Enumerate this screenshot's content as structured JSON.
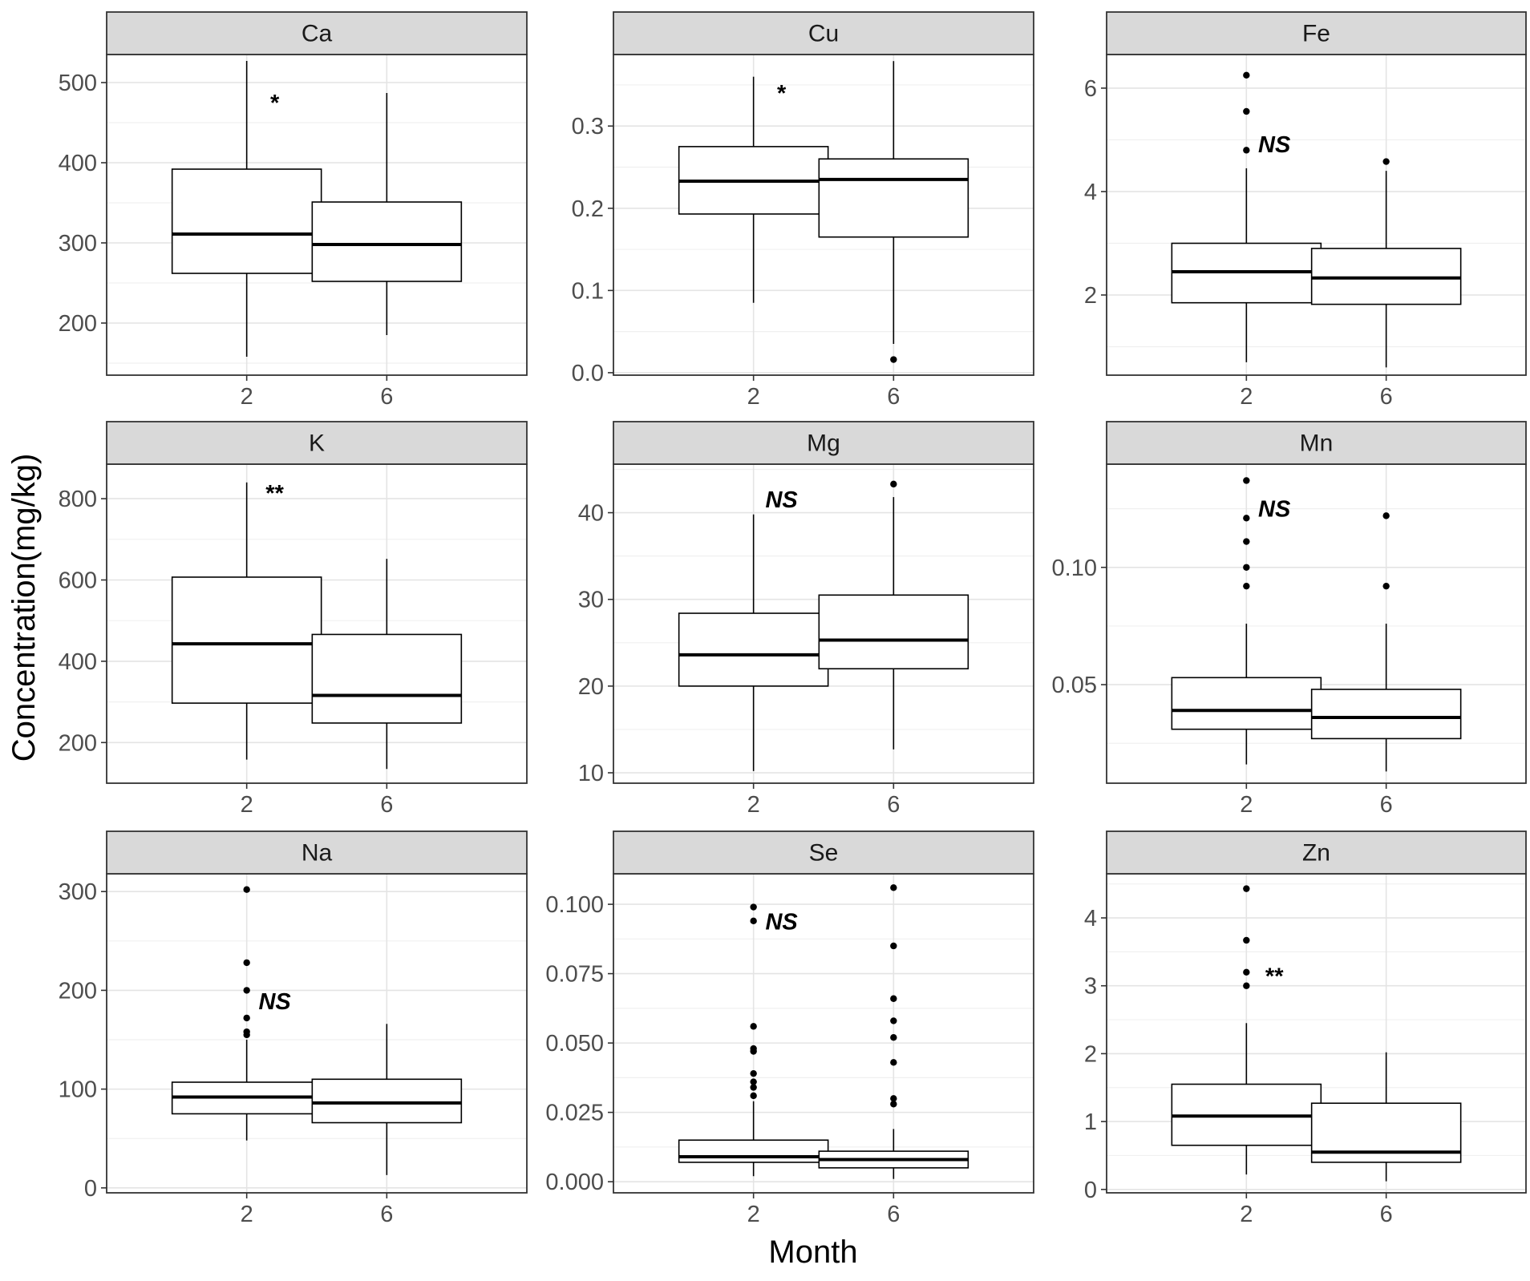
{
  "figure": {
    "xlabel": "Month",
    "ylabel": "Concentration(mg/kg)"
  },
  "chart_data": [
    {
      "type": "box",
      "panel": "Ca",
      "categories": [
        "2",
        "6"
      ],
      "ylim": [
        135,
        535
      ],
      "yticks": [
        200,
        300,
        400,
        500
      ],
      "grid": true,
      "annotation": "*",
      "series": [
        {
          "category": "2",
          "whisker_low": 158,
          "q1": 262,
          "median": 311,
          "q3": 392,
          "whisker_high": 527,
          "outliers": []
        },
        {
          "category": "6",
          "whisker_low": 185,
          "q1": 252,
          "median": 298,
          "q3": 351,
          "whisker_high": 487,
          "outliers": []
        }
      ]
    },
    {
      "type": "box",
      "panel": "Cu",
      "categories": [
        "2",
        "6"
      ],
      "ylim": [
        -0.003,
        0.387
      ],
      "yticks": [
        0.0,
        0.1,
        0.2,
        0.3
      ],
      "ytick_labels": [
        "0.0",
        "0.1",
        "0.2",
        "0.3"
      ],
      "grid": true,
      "annotation": "*",
      "series": [
        {
          "category": "2",
          "whisker_low": 0.085,
          "q1": 0.193,
          "median": 0.233,
          "q3": 0.275,
          "whisker_high": 0.36,
          "outliers": []
        },
        {
          "category": "6",
          "whisker_low": 0.035,
          "q1": 0.165,
          "median": 0.235,
          "q3": 0.26,
          "whisker_high": 0.379,
          "outliers": [
            0.016
          ]
        }
      ]
    },
    {
      "type": "box",
      "panel": "Fe",
      "categories": [
        "2",
        "6"
      ],
      "ylim": [
        0.45,
        6.65
      ],
      "yticks": [
        2,
        4,
        6
      ],
      "grid": true,
      "annotation": "NS",
      "series": [
        {
          "category": "2",
          "whisker_low": 0.7,
          "q1": 1.85,
          "median": 2.45,
          "q3": 3.0,
          "whisker_high": 4.45,
          "outliers": [
            4.8,
            5.55,
            6.25
          ]
        },
        {
          "category": "6",
          "whisker_low": 0.6,
          "q1": 1.82,
          "median": 2.33,
          "q3": 2.9,
          "whisker_high": 4.4,
          "outliers": [
            4.58
          ]
        }
      ]
    },
    {
      "type": "box",
      "panel": "K",
      "categories": [
        "2",
        "6"
      ],
      "ylim": [
        100,
        885
      ],
      "yticks": [
        200,
        400,
        600,
        800
      ],
      "grid": true,
      "annotation": "**",
      "series": [
        {
          "category": "2",
          "whisker_low": 158,
          "q1": 297,
          "median": 443,
          "q3": 607,
          "whisker_high": 840,
          "outliers": []
        },
        {
          "category": "6",
          "whisker_low": 135,
          "q1": 248,
          "median": 316,
          "q3": 466,
          "whisker_high": 652,
          "outliers": []
        }
      ]
    },
    {
      "type": "box",
      "panel": "Mg",
      "categories": [
        "2",
        "6"
      ],
      "ylim": [
        8.8,
        45.6
      ],
      "yticks": [
        10,
        20,
        30,
        40
      ],
      "grid": true,
      "annotation": "NS",
      "series": [
        {
          "category": "2",
          "whisker_low": 10.2,
          "q1": 20.0,
          "median": 23.6,
          "q3": 28.4,
          "whisker_high": 39.8,
          "outliers": []
        },
        {
          "category": "6",
          "whisker_low": 12.7,
          "q1": 22.0,
          "median": 25.3,
          "q3": 30.5,
          "whisker_high": 41.8,
          "outliers": [
            43.3
          ]
        }
      ]
    },
    {
      "type": "box",
      "panel": "Mn",
      "categories": [
        "2",
        "6"
      ],
      "ylim": [
        0.008,
        0.144
      ],
      "yticks": [
        0.05,
        0.1
      ],
      "ytick_labels": [
        "0.05",
        "0.10"
      ],
      "grid": true,
      "annotation": "NS",
      "series": [
        {
          "category": "2",
          "whisker_low": 0.016,
          "q1": 0.031,
          "median": 0.039,
          "q3": 0.053,
          "whisker_high": 0.076,
          "outliers": [
            0.092,
            0.1,
            0.111,
            0.121,
            0.137
          ]
        },
        {
          "category": "6",
          "whisker_low": 0.013,
          "q1": 0.027,
          "median": 0.036,
          "q3": 0.048,
          "whisker_high": 0.076,
          "outliers": [
            0.092,
            0.122
          ]
        }
      ]
    },
    {
      "type": "box",
      "panel": "Na",
      "categories": [
        "2",
        "6"
      ],
      "ylim": [
        -5,
        318
      ],
      "yticks": [
        0,
        100,
        200,
        300
      ],
      "grid": true,
      "annotation": "NS",
      "series": [
        {
          "category": "2",
          "whisker_low": 48,
          "q1": 75,
          "median": 92,
          "q3": 107,
          "whisker_high": 150,
          "outliers": [
            155,
            158,
            172,
            200,
            228,
            302
          ]
        },
        {
          "category": "6",
          "whisker_low": 13,
          "q1": 66,
          "median": 86,
          "q3": 110,
          "whisker_high": 166,
          "outliers": []
        }
      ]
    },
    {
      "type": "box",
      "panel": "Se",
      "categories": [
        "2",
        "6"
      ],
      "ylim": [
        -0.004,
        0.111
      ],
      "yticks": [
        0.0,
        0.025,
        0.05,
        0.075,
        0.1
      ],
      "ytick_labels": [
        "0.000",
        "0.025",
        "0.050",
        "0.075",
        "0.100"
      ],
      "grid": true,
      "annotation": "NS",
      "series": [
        {
          "category": "2",
          "whisker_low": 0.002,
          "q1": 0.007,
          "median": 0.009,
          "q3": 0.015,
          "whisker_high": 0.029,
          "outliers": [
            0.031,
            0.034,
            0.036,
            0.039,
            0.047,
            0.048,
            0.056,
            0.094,
            0.099
          ]
        },
        {
          "category": "6",
          "whisker_low": 0.001,
          "q1": 0.005,
          "median": 0.008,
          "q3": 0.011,
          "whisker_high": 0.019,
          "outliers": [
            0.028,
            0.03,
            0.043,
            0.052,
            0.058,
            0.066,
            0.085,
            0.106
          ]
        }
      ]
    },
    {
      "type": "box",
      "panel": "Zn",
      "categories": [
        "2",
        "6"
      ],
      "ylim": [
        -0.05,
        4.65
      ],
      "yticks": [
        0,
        1,
        2,
        3,
        4
      ],
      "grid": true,
      "annotation": "**",
      "series": [
        {
          "category": "2",
          "whisker_low": 0.22,
          "q1": 0.65,
          "median": 1.08,
          "q3": 1.55,
          "whisker_high": 2.45,
          "outliers": [
            3.0,
            3.2,
            3.67,
            4.43
          ]
        },
        {
          "category": "6",
          "whisker_low": 0.12,
          "q1": 0.4,
          "median": 0.55,
          "q3": 1.27,
          "whisker_high": 2.02,
          "outliers": []
        }
      ]
    }
  ]
}
